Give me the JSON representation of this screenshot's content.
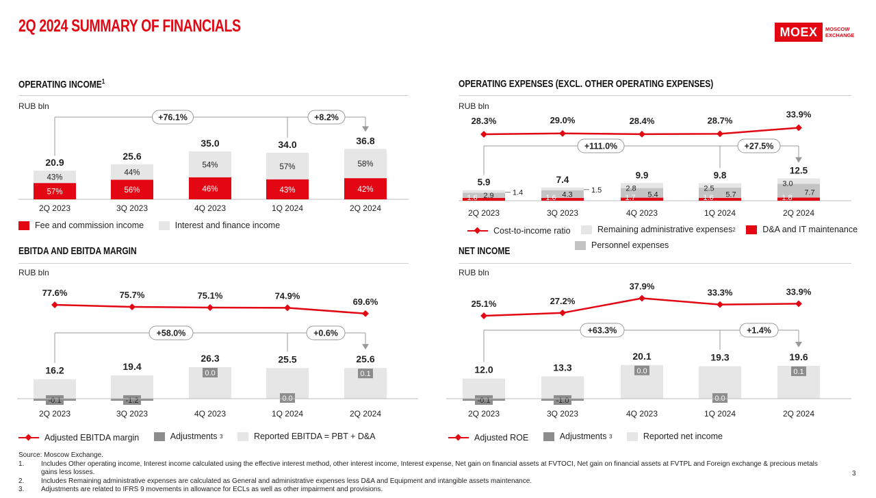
{
  "page": {
    "title": "2Q 2024 SUMMARY OF FINANCIALS",
    "logo_text": "MOEX",
    "logo_sub_1": "MOSCOW",
    "logo_sub_2": "EXCHANGE",
    "page_number": "3"
  },
  "colors": {
    "red": "#e30613",
    "light_grey": "#e6e6e6",
    "mid_grey": "#c4c4c4",
    "dark_grey": "#8c8c8c"
  },
  "units": {
    "rub_bln": "RUB bln"
  },
  "chart_data": [
    {
      "id": "operating_income",
      "type": "bar",
      "title": "OPERATING INCOME",
      "title_note": "1",
      "ylabel": "RUB bln",
      "categories": [
        "2Q 2023",
        "3Q 2023",
        "4Q 2023",
        "1Q 2024",
        "2Q 2024"
      ],
      "totals": [
        "20.9",
        "25.6",
        "35.0",
        "34.0",
        "36.8"
      ],
      "series": [
        {
          "name": "Fee and commission income",
          "color": "#e30613",
          "values": [
            57,
            56,
            46,
            43,
            42
          ],
          "labels": [
            "57%",
            "56%",
            "46%",
            "43%",
            "42%"
          ]
        },
        {
          "name": "Interest and finance income",
          "color": "#e6e6e6",
          "values": [
            43,
            44,
            54,
            57,
            58
          ],
          "labels": [
            "43%",
            "44%",
            "54%",
            "57%",
            "58%"
          ]
        }
      ],
      "growth": [
        "+76.1%",
        "+8.2%"
      ]
    },
    {
      "id": "operating_expenses",
      "type": "bar",
      "title": "OPERATING EXPENSES (EXCL. OTHER OPERATING EXPENSES)",
      "ylabel": "RUB bln",
      "categories": [
        "2Q 2023",
        "3Q 2023",
        "4Q 2023",
        "1Q 2024",
        "2Q 2024"
      ],
      "totals": [
        "5.9",
        "7.4",
        "9.9",
        "9.8",
        "12.5"
      ],
      "series": [
        {
          "name": "D&A and IT maintenance",
          "color": "#e30613",
          "values": [
            1.6,
            1.6,
            1.7,
            1.6,
            1.8
          ],
          "labels": [
            "1.6",
            "1.6",
            "1.7",
            "1.6",
            "1.8"
          ]
        },
        {
          "name": "Personnel expenses",
          "color": "#c4c4c4",
          "values": [
            2.9,
            4.3,
            5.4,
            5.7,
            7.7
          ],
          "labels": [
            "2.9",
            "4.3",
            "5.4",
            "5.7",
            "7.7"
          ]
        },
        {
          "name": "Remaining administrative expenses",
          "name_note": "2",
          "color": "#e6e6e6",
          "values": [
            1.4,
            1.5,
            2.8,
            2.5,
            3.0
          ],
          "labels": [
            "1.4",
            "1.5",
            "2.8",
            "2.5",
            "3.0"
          ]
        }
      ],
      "line": {
        "name": "Cost-to-income ratio",
        "values": [
          28.3,
          29.0,
          28.4,
          28.7,
          33.9
        ],
        "labels": [
          "28.3%",
          "29.0%",
          "28.4%",
          "28.7%",
          "33.9%"
        ]
      },
      "growth": [
        "+111.0%",
        "+27.5%"
      ]
    },
    {
      "id": "ebitda",
      "type": "bar",
      "title": "EBITDA AND EBITDA MARGIN",
      "ylabel": "RUB bln",
      "categories": [
        "2Q 2023",
        "3Q 2023",
        "4Q 2023",
        "1Q 2024",
        "2Q 2024"
      ],
      "totals": [
        "16.2",
        "19.4",
        "26.3",
        "25.5",
        "25.6"
      ],
      "series": [
        {
          "name": "Reported EBITDA = PBT + D&A",
          "color": "#e6e6e6",
          "values": [
            16.3,
            20.6,
            26.3,
            25.5,
            25.5
          ]
        },
        {
          "name": "Adjustments",
          "name_note": "3",
          "color": "#8c8c8c",
          "values": [
            -0.1,
            -1.2,
            0.0,
            0.0,
            0.1
          ],
          "labels": [
            "-0.1",
            "-1.2",
            "0.0",
            "0.0",
            "0.1"
          ]
        }
      ],
      "line": {
        "name": "Adjusted EBITDA margin",
        "values": [
          77.6,
          75.7,
          75.1,
          74.9,
          69.6
        ],
        "labels": [
          "77.6%",
          "75.7%",
          "75.1%",
          "74.9%",
          "69.6%"
        ]
      },
      "growth": [
        "+58.0%",
        "+0.6%"
      ]
    },
    {
      "id": "net_income",
      "type": "bar",
      "title": "NET INCOME",
      "ylabel": "RUB bln",
      "categories": [
        "2Q 2023",
        "3Q 2023",
        "4Q 2023",
        "1Q 2024",
        "2Q 2024"
      ],
      "totals": [
        "12.0",
        "13.3",
        "20.1",
        "19.3",
        "19.6"
      ],
      "series": [
        {
          "name": "Reported net income",
          "color": "#e6e6e6",
          "values": [
            12.1,
            14.3,
            20.1,
            19.3,
            19.5
          ]
        },
        {
          "name": "Adjustments",
          "name_note": "3",
          "color": "#8c8c8c",
          "values": [
            -0.1,
            -1.0,
            0.0,
            0.0,
            0.1
          ],
          "labels": [
            "-0.1",
            "-1.0",
            "0.0",
            "0.0",
            "0.1"
          ]
        }
      ],
      "line": {
        "name": "Adjusted ROE",
        "values": [
          25.1,
          27.2,
          37.9,
          33.3,
          33.9
        ],
        "labels": [
          "25.1%",
          "27.2%",
          "37.9%",
          "33.3%",
          "33.9%"
        ]
      },
      "growth": [
        "+63.3%",
        "+1.4%"
      ]
    }
  ],
  "footnotes": {
    "source": "Source: Moscow Exchange.",
    "items": [
      {
        "num": "1.",
        "text": "Includes Other operating income, Interest income calculated using the effective interest method, other interest income, Interest expense, Net gain on financial assets at FVTOCI, Net gain on financial assets at FVTPL and Foreign exchange & precious metals gains less losses."
      },
      {
        "num": "2.",
        "text": "Includes Remaining administrative expenses are calculated as General and administrative expenses less D&A and Equipment and intangible assets maintenance."
      },
      {
        "num": "3.",
        "text": "Adjustments are related to IFRS 9 movements in allowance for ECLs as well as other impairment and provisions."
      }
    ]
  }
}
